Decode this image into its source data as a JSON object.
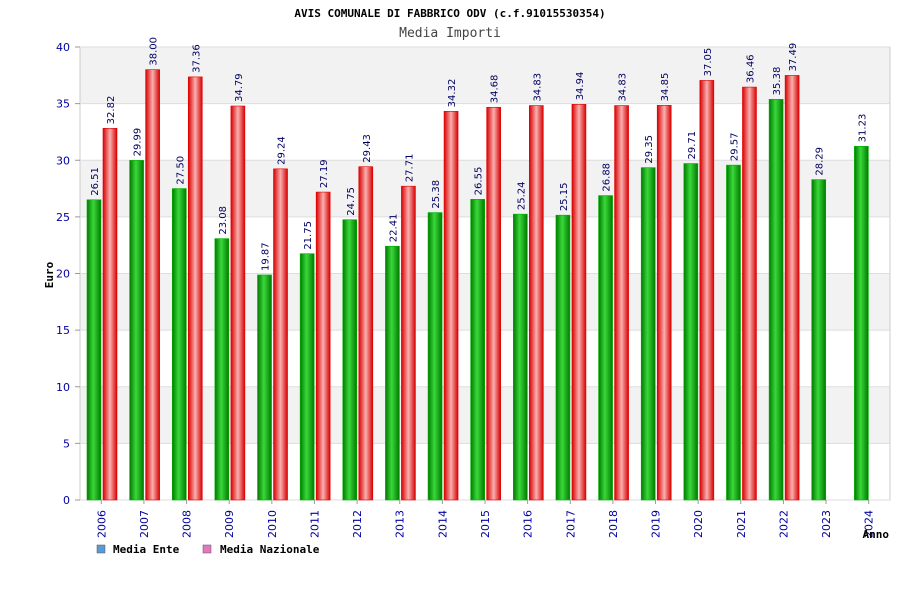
{
  "chart_data": {
    "type": "bar",
    "title": "AVIS COMUNALE DI FABBRICO ODV (c.f.91015530354)",
    "subtitle": "Media Importi",
    "xlabel": "Anno",
    "ylabel": "Euro",
    "ylim": [
      0,
      40
    ],
    "yticks": [
      0,
      5,
      10,
      15,
      20,
      25,
      30,
      35,
      40
    ],
    "grid": true,
    "legend_position": "bottom-left",
    "categories": [
      "2006",
      "2007",
      "2008",
      "2009",
      "2010",
      "2011",
      "2012",
      "2013",
      "2014",
      "2015",
      "2016",
      "2017",
      "2018",
      "2019",
      "2020",
      "2021",
      "2022",
      "2023",
      "2024"
    ],
    "series": [
      {
        "name": "Media Ente",
        "legend_color": "#5b9bd5",
        "bar_color": "#00b000",
        "values": [
          26.51,
          29.99,
          27.5,
          23.08,
          19.87,
          21.75,
          24.75,
          22.41,
          25.38,
          26.55,
          25.24,
          25.15,
          26.88,
          29.35,
          29.71,
          29.57,
          35.38,
          28.29,
          31.23
        ],
        "labels": [
          "26.51",
          "29.99",
          "27.50",
          "23.08",
          "19.87",
          "21.75",
          "24.75",
          "22.41",
          "25.38",
          "26.55",
          "25.24",
          "25.15",
          "26.88",
          "29.35",
          "29.71",
          "29.57",
          "35.38",
          "28.29",
          "31.23"
        ]
      },
      {
        "name": "Media Nazionale",
        "legend_color": "#e377c2",
        "bar_color": "#e00000",
        "values": [
          32.82,
          38.0,
          37.36,
          34.79,
          29.24,
          27.19,
          29.43,
          27.71,
          34.32,
          34.68,
          34.83,
          34.94,
          34.83,
          34.85,
          37.05,
          36.46,
          37.49,
          null,
          null
        ],
        "labels": [
          "32.82",
          "38.00",
          "37.36",
          "34.79",
          "29.24",
          "27.19",
          "29.43",
          "27.71",
          "34.32",
          "34.68",
          "34.83",
          "34.94",
          "34.83",
          "34.85",
          "37.05",
          "36.46",
          "37.49",
          null,
          null
        ]
      }
    ]
  }
}
